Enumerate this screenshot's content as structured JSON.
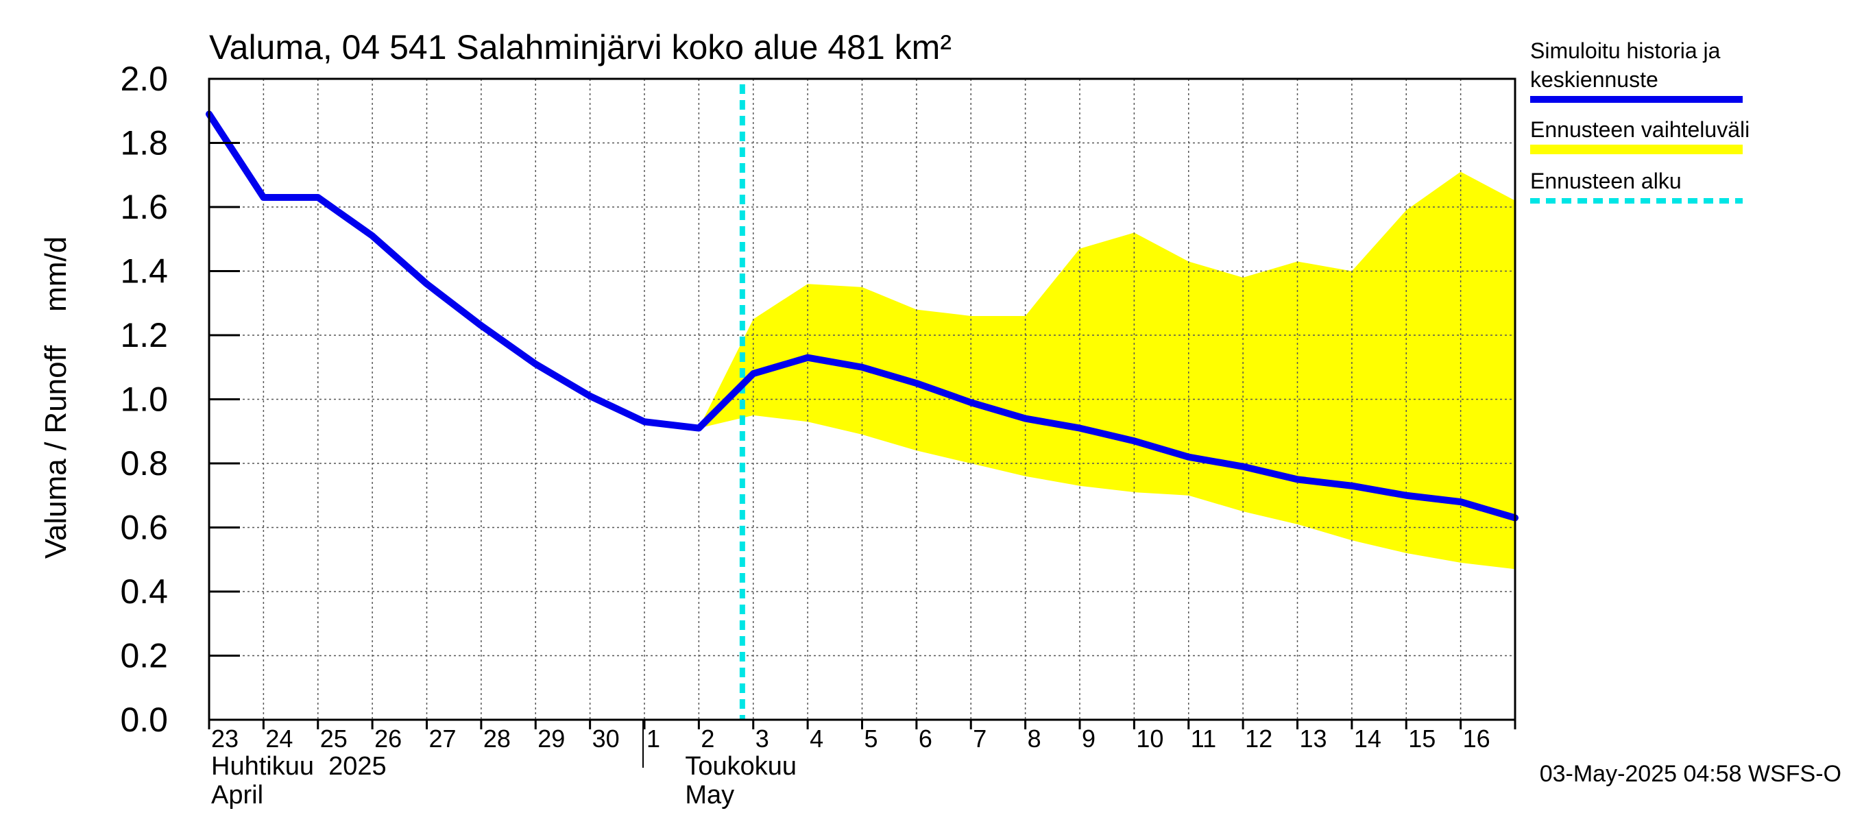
{
  "chart_data": {
    "type": "line",
    "title": "Valuma, 04 541 Salahminjärvi koko alue 481 km²",
    "ylabel": "Valuma / Runoff    mm/d",
    "ylim": [
      0,
      2
    ],
    "yticks": [
      "0.0",
      "0.2",
      "0.4",
      "0.6",
      "0.8",
      "1.0",
      "1.2",
      "1.4",
      "1.6",
      "1.8",
      "2.0"
    ],
    "x_tick_labels": [
      "23",
      "24",
      "25",
      "26",
      "27",
      "28",
      "29",
      "30",
      "1",
      "2",
      "3",
      "4",
      "5",
      "6",
      "7",
      "8",
      "9",
      "10",
      "11",
      "12",
      "13",
      "14",
      "15",
      "16"
    ],
    "month_labels": [
      {
        "line1": "Huhtikuu  2025",
        "line2": "April"
      },
      {
        "line1": "Toukokuu",
        "line2": "May"
      }
    ],
    "forecast_start": "3",
    "grid": true,
    "legend_position": "right",
    "timestamp": "03-May-2025 04:58 WSFS-O",
    "series": [
      {
        "name": "Simuloitu historia ja keskiennuste",
        "color": "#0000ee",
        "role": "line",
        "x": [
          "23",
          "24",
          "25",
          "26",
          "27",
          "28",
          "29",
          "30",
          "1",
          "2",
          "3",
          "4",
          "5",
          "6",
          "7",
          "8",
          "9",
          "10",
          "11",
          "12",
          "13",
          "14",
          "15",
          "16",
          "17"
        ],
        "values": [
          1.89,
          1.63,
          1.63,
          1.51,
          1.36,
          1.23,
          1.11,
          1.01,
          0.93,
          0.91,
          1.08,
          1.13,
          1.1,
          1.05,
          0.99,
          0.94,
          0.91,
          0.87,
          0.82,
          0.79,
          0.75,
          0.73,
          0.7,
          0.68,
          0.63
        ]
      },
      {
        "name": "Ennusteen vaihteluväli",
        "color": "#ffff00",
        "role": "band",
        "x": [
          "2",
          "3",
          "4",
          "5",
          "6",
          "7",
          "8",
          "9",
          "10",
          "11",
          "12",
          "13",
          "14",
          "15",
          "16",
          "17"
        ],
        "upper": [
          0.91,
          1.25,
          1.36,
          1.35,
          1.28,
          1.26,
          1.26,
          1.47,
          1.52,
          1.43,
          1.38,
          1.43,
          1.4,
          1.59,
          1.71,
          1.62
        ],
        "lower": [
          0.91,
          0.95,
          0.93,
          0.89,
          0.84,
          0.8,
          0.76,
          0.73,
          0.71,
          0.7,
          0.65,
          0.61,
          0.56,
          0.52,
          0.49,
          0.47
        ]
      },
      {
        "name": "Ennusteen alku",
        "color": "#00e5e5",
        "role": "vline",
        "x": "3"
      }
    ]
  }
}
